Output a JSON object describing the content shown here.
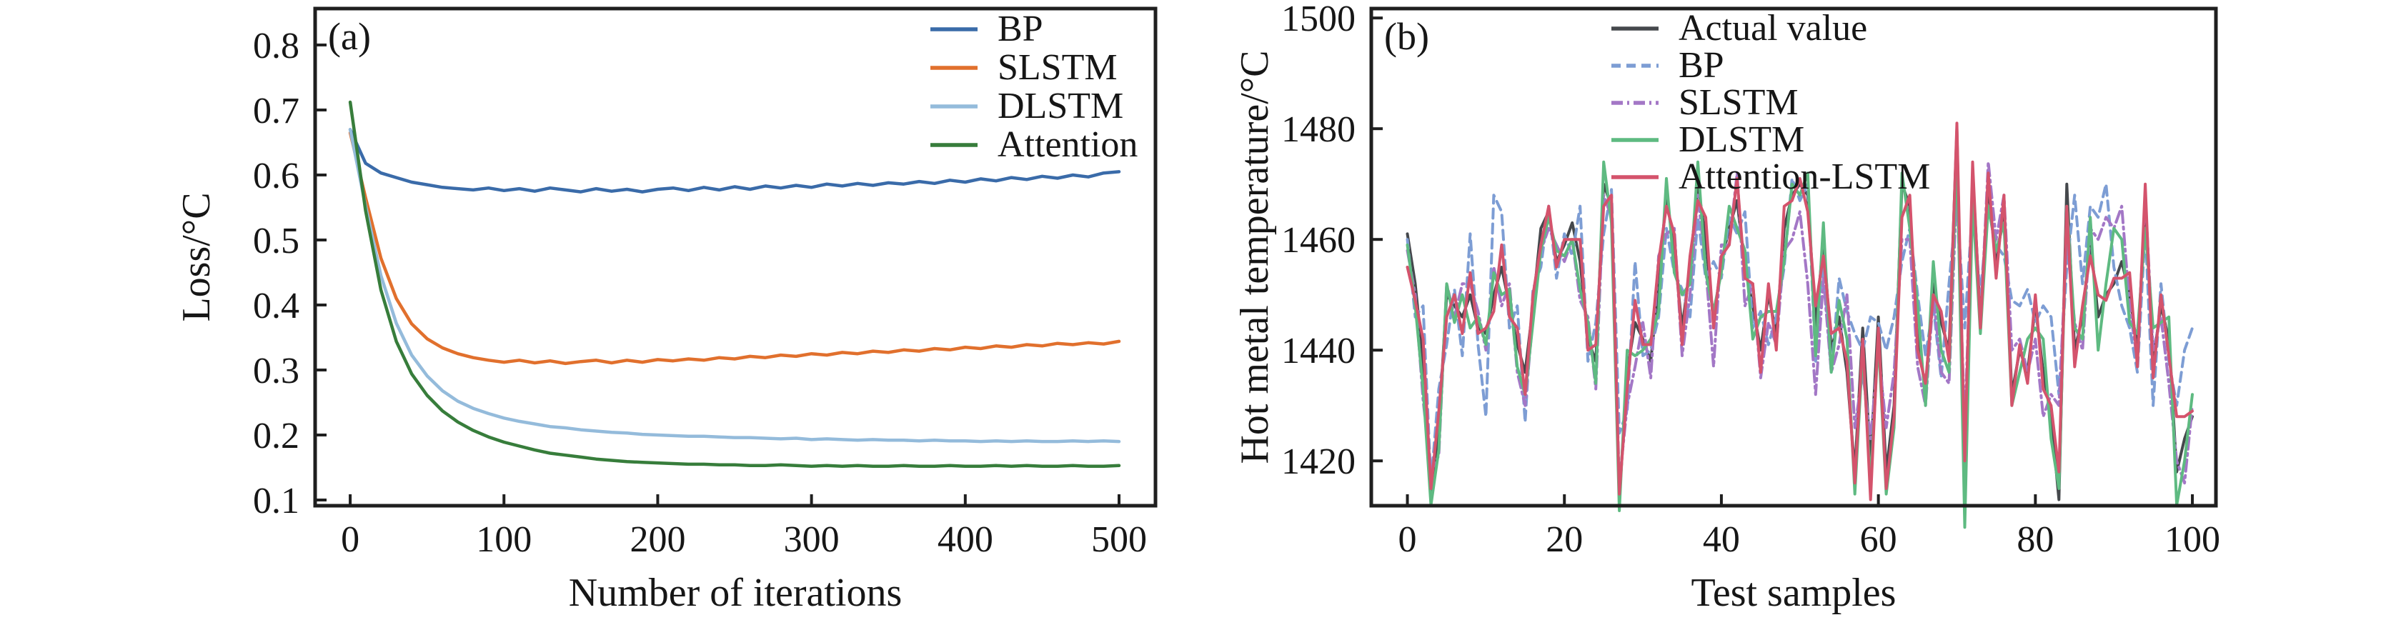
{
  "figure": {
    "background_color": "#ffffff",
    "ink_color": "#1f1f1f",
    "description_visible_text_only": true
  },
  "chart_data": [
    {
      "id": "a",
      "type": "line",
      "panel_label": "(a)",
      "xlabel": "Number of iterations",
      "ylabel": "Loss/°C",
      "xlim": [
        -22.8,
        523.7
      ],
      "ylim": [
        0.0912,
        0.856
      ],
      "grid": false,
      "legend_position": "upper-right-inside",
      "line_width": 4.5,
      "xticks": {
        "values": [
          0,
          100,
          200,
          300,
          400,
          500
        ],
        "labels": [
          "0",
          "100",
          "200",
          "300",
          "400",
          "500"
        ]
      },
      "yticks": {
        "values": [
          0.1,
          0.2,
          0.3,
          0.4,
          0.5,
          0.6,
          0.7,
          0.8
        ],
        "labels": [
          "0.1",
          "0.2",
          "0.3",
          "0.4",
          "0.5",
          "0.6",
          "0.7",
          "0.8"
        ]
      },
      "x": [
        0,
        10,
        20,
        30,
        40,
        50,
        60,
        70,
        80,
        90,
        100,
        110,
        120,
        130,
        140,
        150,
        160,
        170,
        180,
        190,
        200,
        210,
        220,
        230,
        240,
        250,
        260,
        270,
        280,
        290,
        300,
        310,
        320,
        330,
        340,
        350,
        360,
        370,
        380,
        390,
        400,
        410,
        420,
        430,
        440,
        450,
        460,
        470,
        480,
        490,
        500
      ],
      "series": [
        {
          "name": "BP",
          "color": "#3a6ba9",
          "line_style": "solid",
          "values": [
            0.67,
            0.618,
            0.603,
            0.596,
            0.589,
            0.585,
            0.581,
            0.579,
            0.577,
            0.58,
            0.576,
            0.579,
            0.575,
            0.58,
            0.577,
            0.574,
            0.579,
            0.575,
            0.578,
            0.574,
            0.578,
            0.58,
            0.576,
            0.581,
            0.577,
            0.582,
            0.578,
            0.583,
            0.58,
            0.584,
            0.581,
            0.586,
            0.583,
            0.587,
            0.584,
            0.588,
            0.586,
            0.59,
            0.587,
            0.592,
            0.589,
            0.594,
            0.591,
            0.596,
            0.593,
            0.598,
            0.595,
            0.6,
            0.597,
            0.603,
            0.605
          ]
        },
        {
          "name": "SLSTM",
          "color": "#e1702d",
          "line_style": "solid",
          "values": [
            0.665,
            0.565,
            0.472,
            0.41,
            0.371,
            0.348,
            0.334,
            0.325,
            0.319,
            0.315,
            0.312,
            0.315,
            0.311,
            0.314,
            0.31,
            0.313,
            0.315,
            0.311,
            0.315,
            0.312,
            0.316,
            0.314,
            0.317,
            0.315,
            0.319,
            0.317,
            0.321,
            0.319,
            0.323,
            0.321,
            0.325,
            0.323,
            0.327,
            0.325,
            0.329,
            0.327,
            0.331,
            0.329,
            0.333,
            0.331,
            0.335,
            0.333,
            0.337,
            0.335,
            0.339,
            0.337,
            0.341,
            0.339,
            0.342,
            0.34,
            0.344
          ]
        },
        {
          "name": "DLSTM",
          "color": "#94bbdb",
          "line_style": "solid",
          "values": [
            0.67,
            0.552,
            0.445,
            0.372,
            0.323,
            0.291,
            0.268,
            0.252,
            0.241,
            0.233,
            0.226,
            0.221,
            0.217,
            0.213,
            0.211,
            0.208,
            0.206,
            0.204,
            0.203,
            0.201,
            0.2,
            0.199,
            0.198,
            0.198,
            0.197,
            0.196,
            0.196,
            0.195,
            0.194,
            0.195,
            0.193,
            0.194,
            0.193,
            0.192,
            0.193,
            0.192,
            0.192,
            0.191,
            0.192,
            0.191,
            0.191,
            0.19,
            0.191,
            0.19,
            0.191,
            0.19,
            0.19,
            0.191,
            0.19,
            0.191,
            0.19
          ]
        },
        {
          "name": "Attention",
          "color": "#377d3b",
          "line_style": "solid",
          "values": [
            0.712,
            0.545,
            0.423,
            0.344,
            0.294,
            0.261,
            0.237,
            0.22,
            0.207,
            0.197,
            0.189,
            0.183,
            0.177,
            0.172,
            0.169,
            0.166,
            0.163,
            0.161,
            0.159,
            0.158,
            0.157,
            0.156,
            0.155,
            0.155,
            0.154,
            0.154,
            0.153,
            0.153,
            0.154,
            0.153,
            0.152,
            0.153,
            0.152,
            0.153,
            0.152,
            0.152,
            0.153,
            0.152,
            0.152,
            0.153,
            0.152,
            0.152,
            0.153,
            0.152,
            0.153,
            0.152,
            0.152,
            0.153,
            0.152,
            0.152,
            0.153
          ]
        }
      ]
    },
    {
      "id": "b",
      "type": "line",
      "panel_label": "(b)",
      "xlabel": "Test samples",
      "ylabel": "Hot metal temperature/°C",
      "xlim": [
        -4.6,
        103.0
      ],
      "ylim": [
        1411.9,
        1501.7
      ],
      "grid": false,
      "legend_position": "upper-center-inside",
      "line_width": 4,
      "xticks": {
        "values": [
          0,
          20,
          40,
          60,
          80,
          100
        ],
        "labels": [
          "0",
          "20",
          "40",
          "60",
          "80",
          "100"
        ]
      },
      "yticks": {
        "values": [
          1420,
          1440,
          1460,
          1480,
          1500
        ],
        "labels": [
          "1420",
          "1440",
          "1460",
          "1480",
          "1500"
        ]
      },
      "x": [
        0,
        1,
        2,
        3,
        4,
        5,
        6,
        7,
        8,
        9,
        10,
        11,
        12,
        13,
        14,
        15,
        16,
        17,
        18,
        19,
        20,
        21,
        22,
        23,
        24,
        25,
        26,
        27,
        28,
        29,
        30,
        31,
        32,
        33,
        34,
        35,
        36,
        37,
        38,
        39,
        40,
        41,
        42,
        43,
        44,
        45,
        46,
        47,
        48,
        49,
        50,
        51,
        52,
        53,
        54,
        55,
        56,
        57,
        58,
        59,
        60,
        61,
        62,
        63,
        64,
        65,
        66,
        67,
        68,
        69,
        70,
        71,
        72,
        73,
        74,
        75,
        76,
        77,
        78,
        79,
        80,
        81,
        82,
        83,
        84,
        85,
        86,
        87,
        88,
        89,
        90,
        91,
        92,
        93,
        94,
        95,
        96,
        97,
        98,
        99,
        100
      ],
      "series": [
        {
          "name": "Actual value",
          "color": "#45484c",
          "line_style": "solid",
          "values": [
            1461,
            1452,
            1438,
            1414,
            1426,
            1450,
            1448,
            1446,
            1450,
            1444,
            1443,
            1450,
            1455,
            1448,
            1441,
            1436,
            1448,
            1462,
            1465,
            1456,
            1459,
            1463,
            1456,
            1442,
            1438,
            1470,
            1466,
            1413,
            1436,
            1445,
            1442,
            1438,
            1452,
            1468,
            1458,
            1444,
            1455,
            1470,
            1460,
            1445,
            1456,
            1462,
            1467,
            1455,
            1448,
            1440,
            1450,
            1443,
            1462,
            1468,
            1470,
            1468,
            1444,
            1460,
            1440,
            1446,
            1436,
            1418,
            1444,
            1420,
            1446,
            1418,
            1430,
            1470,
            1466,
            1442,
            1433,
            1452,
            1445,
            1440,
            1480,
            1414,
            1472,
            1446,
            1470,
            1455,
            1466,
            1432,
            1440,
            1436,
            1448,
            1436,
            1428,
            1413,
            1470,
            1440,
            1446,
            1460,
            1446,
            1450,
            1452,
            1456,
            1450,
            1440,
            1466,
            1438,
            1448,
            1442,
            1418,
            1424,
            1428
          ]
        },
        {
          "name": "BP",
          "color": "#7d9dd4",
          "line_style": "dashed",
          "values": [
            1460,
            1446,
            1448,
            1416,
            1433,
            1441,
            1451,
            1439,
            1461,
            1441,
            1428,
            1468,
            1465,
            1444,
            1448,
            1427,
            1451,
            1455,
            1466,
            1453,
            1461,
            1457,
            1466,
            1438,
            1445,
            1461,
            1469,
            1425,
            1429,
            1456,
            1439,
            1440,
            1446,
            1462,
            1454,
            1451,
            1446,
            1464,
            1453,
            1456,
            1453,
            1464,
            1461,
            1465,
            1444,
            1447,
            1441,
            1446,
            1455,
            1471,
            1467,
            1470,
            1438,
            1455,
            1436,
            1453,
            1447,
            1443,
            1440,
            1446,
            1445,
            1440,
            1446,
            1456,
            1462,
            1450,
            1439,
            1448,
            1435,
            1452,
            1467,
            1444,
            1466,
            1450,
            1466,
            1459,
            1457,
            1449,
            1448,
            1451,
            1445,
            1448,
            1446,
            1432,
            1455,
            1468,
            1452,
            1466,
            1464,
            1470,
            1455,
            1448,
            1444,
            1436,
            1462,
            1430,
            1452,
            1438,
            1430,
            1440,
            1444
          ]
        },
        {
          "name": "SLSTM",
          "color": "#a377c6",
          "line_style": "dashdot",
          "values": [
            1458,
            1450,
            1431,
            1418,
            1421,
            1452,
            1446,
            1452,
            1452,
            1447,
            1440,
            1455,
            1448,
            1452,
            1436,
            1430,
            1446,
            1458,
            1462,
            1459,
            1456,
            1460,
            1449,
            1446,
            1433,
            1468,
            1464,
            1416,
            1430,
            1437,
            1445,
            1435,
            1457,
            1461,
            1462,
            1439,
            1450,
            1468,
            1455,
            1437,
            1459,
            1459,
            1472,
            1448,
            1452,
            1435,
            1445,
            1441,
            1458,
            1460,
            1465,
            1452,
            1432,
            1453,
            1436,
            1441,
            1450,
            1426,
            1436,
            1424,
            1440,
            1426,
            1436,
            1460,
            1460,
            1437,
            1430,
            1450,
            1436,
            1434,
            1470,
            1426,
            1468,
            1444,
            1474,
            1460,
            1468,
            1440,
            1442,
            1436,
            1442,
            1428,
            1432,
            1430,
            1460,
            1445,
            1440,
            1462,
            1460,
            1464,
            1462,
            1466,
            1448,
            1438,
            1468,
            1440,
            1446,
            1434,
            1420,
            1416,
            1430
          ]
        },
        {
          "name": "DLSTM",
          "color": "#5eba81",
          "line_style": "solid",
          "values": [
            1459,
            1448,
            1433,
            1412,
            1422,
            1452,
            1445,
            1450,
            1444,
            1446,
            1441,
            1454,
            1450,
            1451,
            1437,
            1432,
            1445,
            1458,
            1464,
            1458,
            1457,
            1460,
            1451,
            1445,
            1434,
            1474,
            1463,
            1411,
            1440,
            1439,
            1440,
            1442,
            1447,
            1471,
            1454,
            1450,
            1452,
            1474,
            1454,
            1447,
            1454,
            1466,
            1462,
            1458,
            1442,
            1446,
            1447,
            1447,
            1456,
            1470,
            1468,
            1472,
            1439,
            1463,
            1436,
            1449,
            1442,
            1414,
            1440,
            1416,
            1442,
            1414,
            1426,
            1472,
            1462,
            1448,
            1430,
            1456,
            1440,
            1436,
            1476,
            1408,
            1467,
            1443,
            1466,
            1458,
            1463,
            1430,
            1436,
            1442,
            1444,
            1442,
            1424,
            1415,
            1466,
            1444,
            1442,
            1464,
            1440,
            1452,
            1462,
            1460,
            1445,
            1443,
            1462,
            1444,
            1445,
            1446,
            1412,
            1420,
            1432
          ]
        },
        {
          "name": "Attention-LSTM",
          "color": "#d4536c",
          "line_style": "solid",
          "values": [
            1455,
            1449,
            1442,
            1415,
            1429,
            1446,
            1450,
            1443,
            1454,
            1443,
            1444,
            1447,
            1459,
            1446,
            1444,
            1432,
            1450,
            1459,
            1466,
            1455,
            1460,
            1460,
            1460,
            1440,
            1441,
            1466,
            1468,
            1414,
            1433,
            1449,
            1441,
            1441,
            1456,
            1466,
            1461,
            1441,
            1457,
            1467,
            1464,
            1444,
            1457,
            1459,
            1471,
            1453,
            1452,
            1436,
            1452,
            1440,
            1466,
            1467,
            1471,
            1465,
            1448,
            1457,
            1443,
            1444,
            1438,
            1416,
            1442,
            1413,
            1444,
            1415,
            1428,
            1464,
            1468,
            1440,
            1434,
            1450,
            1447,
            1438,
            1481,
            1420,
            1474,
            1444,
            1472,
            1453,
            1468,
            1430,
            1441,
            1434,
            1450,
            1433,
            1430,
            1418,
            1466,
            1437,
            1448,
            1457,
            1450,
            1449,
            1453,
            1453,
            1454,
            1437,
            1470,
            1435,
            1450,
            1439,
            1428,
            1428,
            1429
          ]
        }
      ]
    }
  ]
}
